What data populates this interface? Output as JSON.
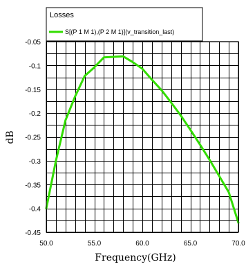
{
  "chart_data": {
    "type": "line",
    "legend": {
      "title": "Losses",
      "placement": "top-left"
    },
    "series": [
      {
        "name": "S[(P 1 M 1),(P 2 M 1)](v_transition_last)",
        "color": "#33dd00",
        "x": [
          50.0,
          51.0,
          52.0,
          53.0,
          54.0,
          55.0,
          56.0,
          57.0,
          58.0,
          59.0,
          60.0,
          61.0,
          62.0,
          63.0,
          64.0,
          65.0,
          66.0,
          67.0,
          68.0,
          69.0,
          70.0
        ],
        "y": [
          -0.4,
          -0.3,
          -0.215,
          -0.165,
          -0.122,
          -0.104,
          -0.083,
          -0.082,
          -0.081,
          -0.093,
          -0.107,
          -0.13,
          -0.152,
          -0.178,
          -0.205,
          -0.235,
          -0.266,
          -0.298,
          -0.332,
          -0.366,
          -0.43
        ]
      }
    ],
    "xlabel": "Frequency(GHz)",
    "ylabel": "dB",
    "xlim": [
      50.0,
      70.0
    ],
    "ylim": [
      -0.45,
      -0.05
    ],
    "xticks": [
      "50.0",
      "55.0",
      "60.0",
      "65.0",
      "70.0"
    ],
    "yticks": [
      "-0.05",
      "-0.1",
      "-0.15",
      "-0.2",
      "-0.25",
      "-0.3",
      "-0.35",
      "-0.4",
      "-0.45"
    ],
    "grid": true
  }
}
